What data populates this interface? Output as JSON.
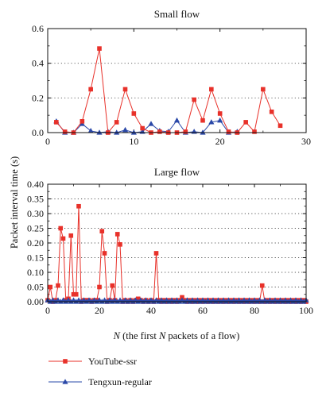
{
  "chart_data": [
    {
      "type": "line",
      "title": "Small flow",
      "xlim": [
        0,
        30
      ],
      "ylim": [
        0,
        0.6
      ],
      "xticks": [
        "0",
        "10",
        "20",
        "30"
      ],
      "yticks": [
        "0.0",
        "0.2",
        "0.4",
        "0.6"
      ],
      "grid": "horizontal dotted",
      "series": [
        {
          "name": "YouTube-ssr",
          "color": "#e8312a",
          "marker": "square",
          "x": [
            1,
            2,
            3,
            4,
            5,
            6,
            7,
            8,
            9,
            10,
            11,
            12,
            13,
            14,
            15,
            16,
            17,
            18,
            19,
            20,
            21,
            22,
            23,
            24,
            25,
            26,
            27
          ],
          "y": [
            0.06,
            0.005,
            0.0,
            0.065,
            0.25,
            0.485,
            0.0,
            0.06,
            0.25,
            0.11,
            0.025,
            0.0,
            0.005,
            0.0,
            0.0,
            0.005,
            0.19,
            0.07,
            0.25,
            0.11,
            0.005,
            0.0,
            0.06,
            0.005,
            0.25,
            0.12,
            0.04
          ]
        },
        {
          "name": "Tengxun-regular",
          "color": "#2a48a8",
          "marker": "triangle",
          "x": [
            1,
            2,
            3,
            4,
            5,
            6,
            7,
            8,
            9,
            10,
            11,
            12,
            13,
            14,
            15,
            16,
            17,
            18,
            19,
            20,
            21,
            22
          ],
          "y": [
            0.065,
            0.0,
            0.0,
            0.05,
            0.01,
            0.0,
            0.005,
            0.0,
            0.015,
            0.0,
            0.005,
            0.05,
            0.01,
            0.005,
            0.07,
            0.0,
            0.005,
            0.0,
            0.06,
            0.07,
            0.0,
            0.005
          ]
        }
      ]
    },
    {
      "type": "line",
      "title": "Large flow",
      "xlim": [
        0,
        100
      ],
      "ylim": [
        0,
        0.4
      ],
      "xticks": [
        "0",
        "20",
        "40",
        "60",
        "80",
        "100"
      ],
      "yticks": [
        "0.00",
        "0.05",
        "0.10",
        "0.15",
        "0.20",
        "0.25",
        "0.30",
        "0.35",
        "0.40"
      ],
      "grid": "horizontal dotted",
      "series": [
        {
          "name": "YouTube-ssr",
          "color": "#e8312a",
          "marker": "square",
          "x": [
            0,
            1,
            2,
            3,
            4,
            5,
            6,
            7,
            8,
            9,
            10,
            11,
            12,
            13,
            14,
            15,
            16,
            17,
            18,
            19,
            20,
            21,
            22,
            23,
            24,
            25,
            26,
            27,
            28,
            29,
            30,
            31,
            32,
            33,
            34,
            35,
            36,
            37,
            38,
            39,
            40,
            41,
            42,
            43,
            44,
            45,
            46,
            47,
            48,
            49,
            50,
            51,
            52,
            53,
            54,
            55,
            56,
            57,
            58,
            59,
            60,
            61,
            62,
            63,
            64,
            65,
            66,
            67,
            68,
            69,
            70,
            71,
            72,
            73,
            74,
            75,
            76,
            77,
            78,
            79,
            80,
            81,
            82,
            83,
            84,
            85,
            86,
            87,
            88,
            89,
            90,
            91,
            92,
            93,
            94,
            95,
            96,
            97,
            98,
            99,
            100
          ],
          "y": [
            0.005,
            0.05,
            0.0,
            0.005,
            0.055,
            0.25,
            0.215,
            0.005,
            0.01,
            0.225,
            0.025,
            0.025,
            0.325,
            0.0,
            0.005,
            0.005,
            0.005,
            0.0,
            0.005,
            0.005,
            0.05,
            0.24,
            0.165,
            0.0,
            0.005,
            0.055,
            0.005,
            0.23,
            0.195,
            0.0,
            0.005,
            0.0,
            0.005,
            0.0,
            0.005,
            0.01,
            0.005,
            0.0,
            0.005,
            0.0,
            0.005,
            0.0,
            0.165,
            0.005,
            0.0,
            0.005,
            0.0,
            0.005,
            0.0,
            0.005,
            0.0,
            0.005,
            0.015,
            0.005,
            0.0,
            0.005,
            0.0,
            0.005,
            0.0,
            0.005,
            0.0,
            0.005,
            0.0,
            0.005,
            0.0,
            0.005,
            0.0,
            0.005,
            0.0,
            0.005,
            0.0,
            0.005,
            0.0,
            0.005,
            0.0,
            0.005,
            0.0,
            0.005,
            0.0,
            0.005,
            0.0,
            0.005,
            0.0,
            0.055,
            0.0,
            0.005,
            0.0,
            0.005,
            0.0,
            0.005,
            0.0,
            0.005,
            0.0,
            0.005,
            0.0,
            0.005,
            0.0,
            0.005,
            0.0,
            0.005,
            0.0
          ]
        },
        {
          "name": "Tengxun-regular",
          "color": "#2a48a8",
          "marker": "triangle",
          "x": [
            0,
            1,
            2,
            3,
            4,
            5,
            6,
            7,
            8,
            9,
            10,
            11,
            12,
            13,
            14,
            15,
            16,
            17,
            18,
            19,
            20,
            21,
            22,
            23,
            24,
            25,
            26,
            27,
            28,
            29,
            30,
            31,
            32,
            33,
            34,
            35,
            36,
            37,
            38,
            39,
            40,
            41,
            42,
            43,
            44,
            45,
            46,
            47,
            48,
            49,
            50,
            51,
            52,
            53,
            54,
            55,
            56,
            57,
            58,
            59,
            60,
            61,
            62,
            63,
            64,
            65,
            66,
            67,
            68,
            69,
            70,
            71,
            72,
            73,
            74,
            75,
            76,
            77,
            78,
            79,
            80,
            81,
            82,
            83,
            84,
            85,
            86,
            87,
            88,
            89,
            90,
            91,
            92,
            93,
            94,
            95,
            96,
            97,
            98,
            99,
            100
          ],
          "y": [
            0.005,
            0.0,
            0.005,
            0.0,
            0.005,
            0.0,
            0.005,
            0.0,
            0.005,
            0.0,
            0.005,
            0.0,
            0.005,
            0.0,
            0.005,
            0.0,
            0.005,
            0.0,
            0.005,
            0.0,
            0.005,
            0.0,
            0.005,
            0.0,
            0.005,
            0.0,
            0.005,
            0.0,
            0.005,
            0.0,
            0.005,
            0.0,
            0.005,
            0.0,
            0.005,
            0.0,
            0.005,
            0.0,
            0.005,
            0.0,
            0.005,
            0.0,
            0.005,
            0.0,
            0.005,
            0.0,
            0.005,
            0.0,
            0.005,
            0.0,
            0.005,
            0.0,
            0.005,
            0.0,
            0.005,
            0.0,
            0.005,
            0.0,
            0.005,
            0.0,
            0.005,
            0.0,
            0.005,
            0.0,
            0.005,
            0.0,
            0.005,
            0.0,
            0.005,
            0.0,
            0.005,
            0.0,
            0.005,
            0.0,
            0.005,
            0.0,
            0.005,
            0.0,
            0.005,
            0.0,
            0.005,
            0.0,
            0.005,
            0.0,
            0.005,
            0.0,
            0.005,
            0.0,
            0.005,
            0.0,
            0.005,
            0.0,
            0.005,
            0.0,
            0.005,
            0.0,
            0.005,
            0.0,
            0.005,
            0.0,
            0.005
          ]
        }
      ]
    }
  ],
  "shared": {
    "ylabel": "Packet interval time (s)",
    "xlabel_italic": "N",
    "xlabel_rest": " (the first ",
    "xlabel_italic2": "N",
    "xlabel_end": " packets of a flow)"
  },
  "legend": [
    {
      "label": "YouTube-ssr",
      "color": "#e8312a",
      "marker": "square"
    },
    {
      "label": "Tengxun-regular",
      "color": "#2a48a8",
      "marker": "triangle"
    }
  ]
}
